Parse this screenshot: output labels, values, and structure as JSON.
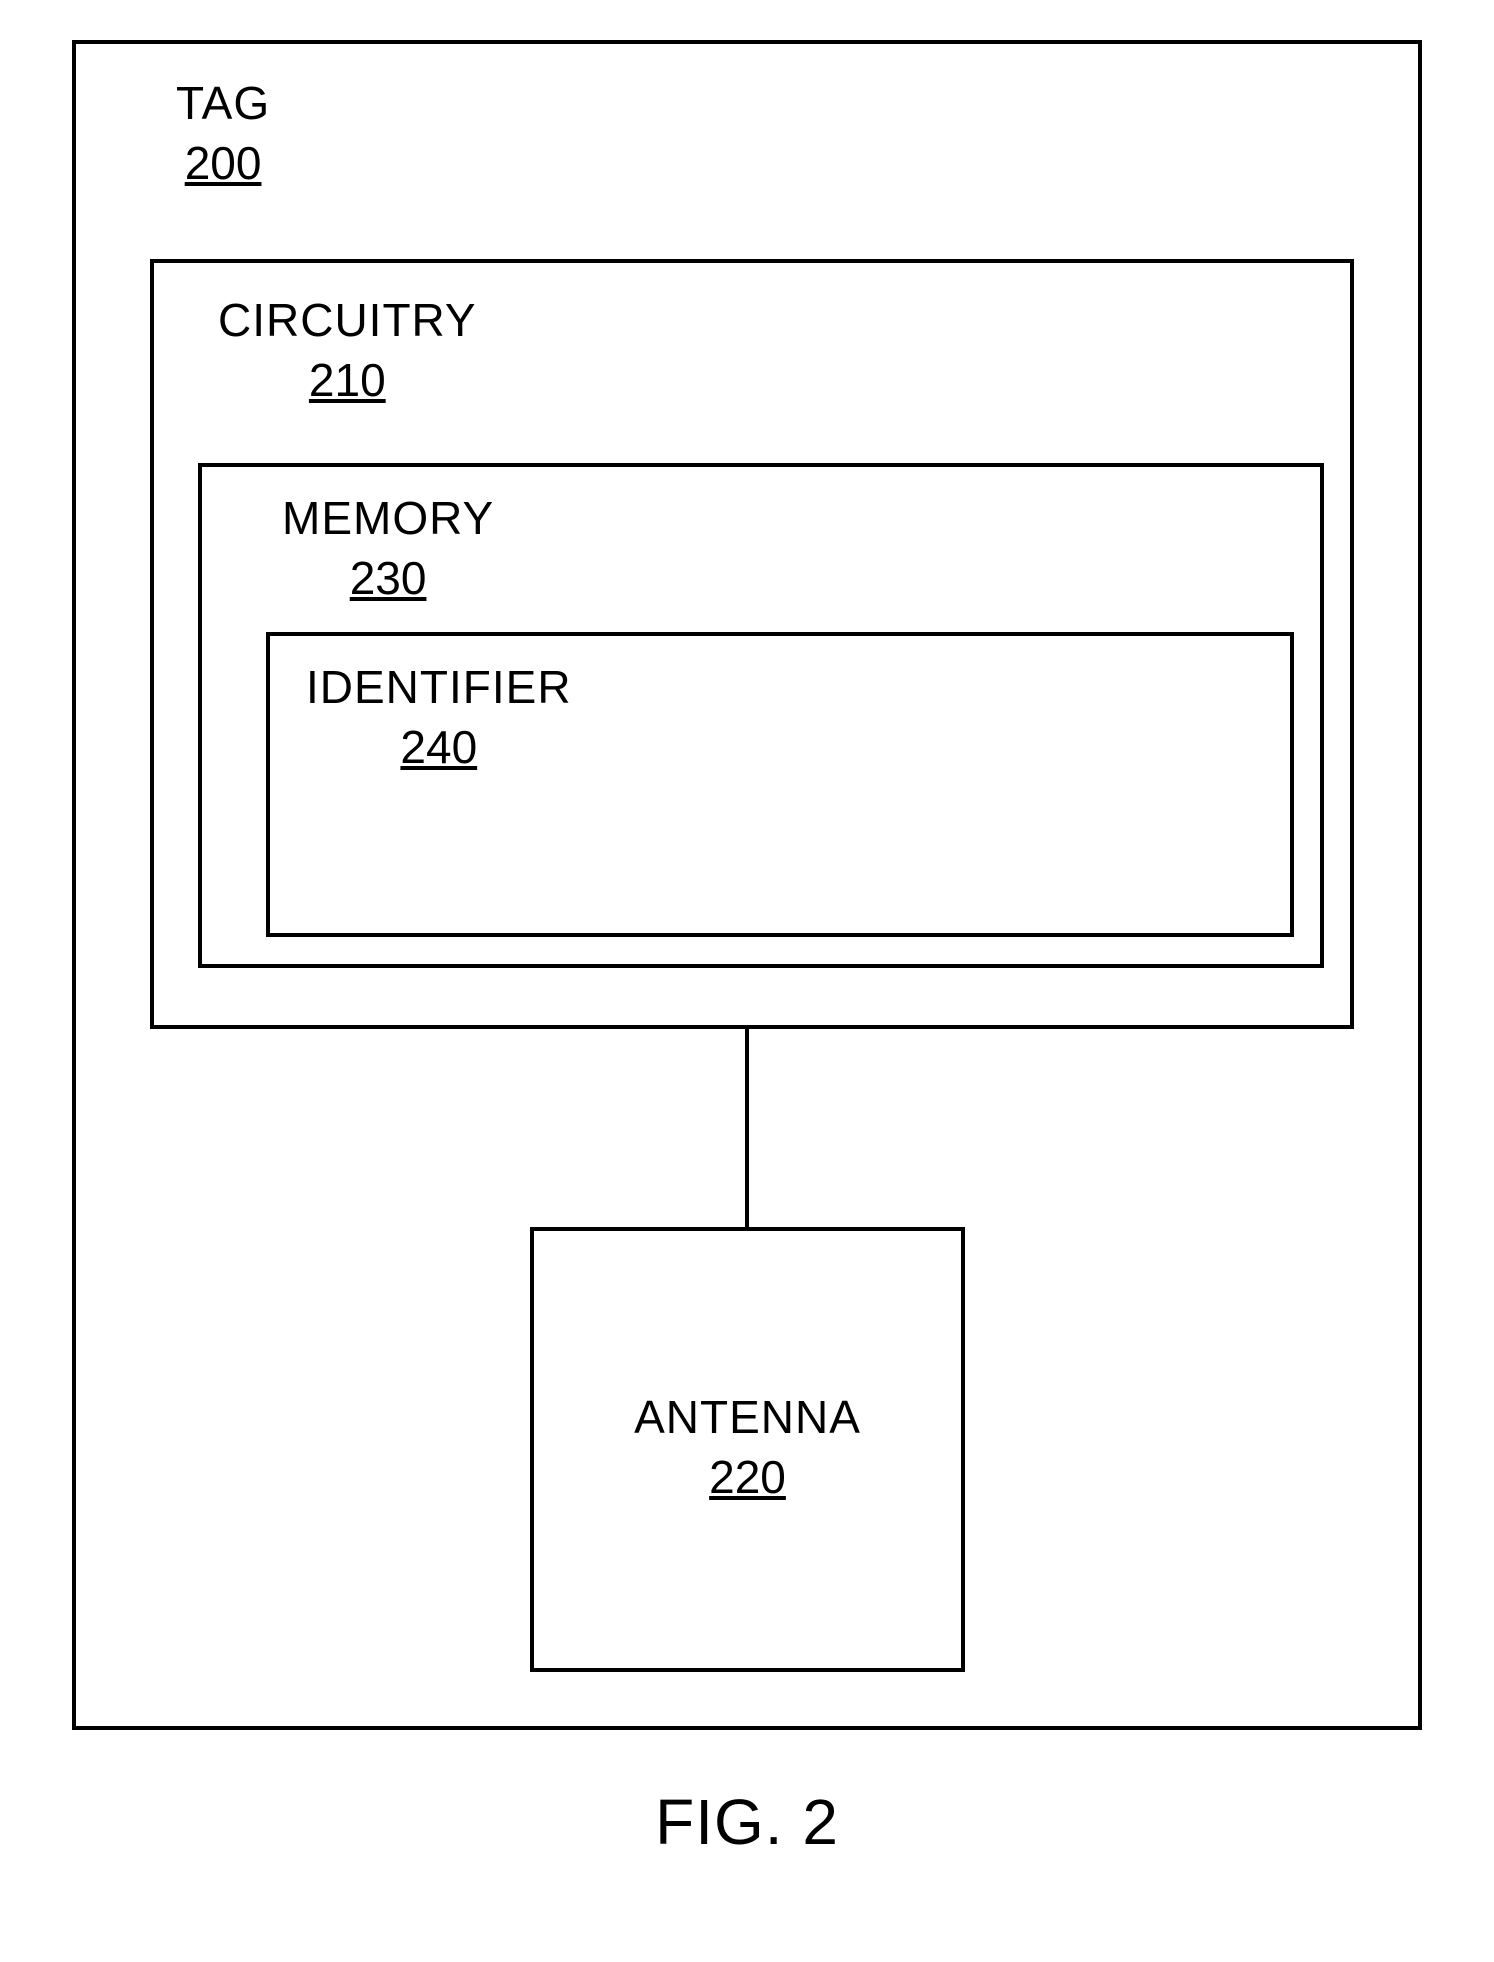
{
  "diagram": {
    "type": "block-diagram",
    "outer_border_color": "#000000",
    "outer_border_width": 4,
    "background_color": "#ffffff",
    "text_color": "#000000",
    "title_fontsize": 46,
    "number_fontsize": 46,
    "caption_fontsize": 64,
    "tag": {
      "label": "TAG",
      "number": "200"
    },
    "circuitry": {
      "label": "CIRCUITRY",
      "number": "210",
      "border_color": "#000000",
      "border_width": 4
    },
    "memory": {
      "label": "MEMORY",
      "number": "230",
      "border_color": "#000000",
      "border_width": 4
    },
    "identifier": {
      "label": "IDENTIFIER",
      "number": "240",
      "border_color": "#000000",
      "border_width": 4
    },
    "antenna": {
      "label": "ANTENNA",
      "number": "220",
      "border_color": "#000000",
      "border_width": 4
    },
    "connector": {
      "color": "#000000",
      "width": 4
    },
    "caption": "FIG. 2"
  }
}
